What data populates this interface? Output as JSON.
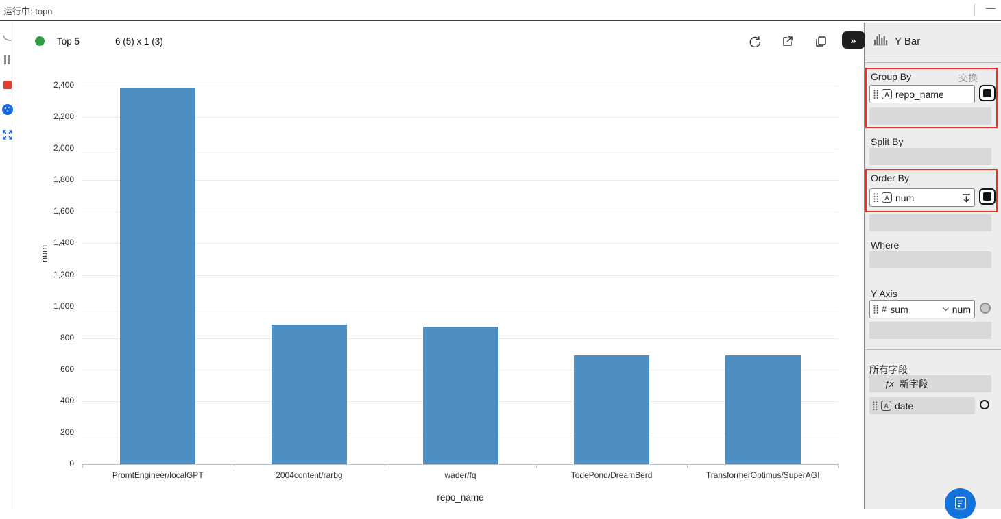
{
  "titlebar": {
    "running_label": "运行中: topn",
    "minimize_glyph": "—"
  },
  "sidebar": {
    "icons": [
      "spinner-arc-icon",
      "pause-icon",
      "stop-icon",
      "blue-ball-icon",
      "expand-icon"
    ]
  },
  "chart_header": {
    "title": "Top 5",
    "dims": "6 (5) x 1 (3)",
    "collapse_glyph": "»"
  },
  "chart_data": {
    "type": "bar",
    "title": "Top 5",
    "categories": [
      "PromtEngineer/localGPT",
      "2004content/rarbg",
      "wader/fq",
      "TodePond/DreamBerd",
      "TransformerOptimus/SuperAGI"
    ],
    "values": [
      2388,
      885,
      874,
      691,
      688
    ],
    "xlabel": "repo_name",
    "ylabel": "num",
    "ylim": [
      0,
      2400
    ],
    "ytick_step": 200,
    "grid": true,
    "legend": false
  },
  "panel": {
    "header": {
      "title": "Y Bar"
    },
    "group_by": {
      "label": "Group By",
      "swap_label": "交换",
      "field": "repo_name",
      "field_type": "A"
    },
    "split_by": {
      "label": "Split By"
    },
    "order_by": {
      "label": "Order By",
      "field": "num",
      "field_type": "A",
      "direction": "desc"
    },
    "where": {
      "label": "Where"
    },
    "y_axis": {
      "label": "Y Axis",
      "aggregation": "sum",
      "field": "num",
      "field_type": "#"
    },
    "all_fields": {
      "label": "所有字段",
      "new_field_label": "新字段",
      "fx_glyph": "ƒx",
      "fields": [
        {
          "name": "date",
          "field_type": "A"
        }
      ]
    }
  },
  "colors": {
    "bar": "#4d8ec3",
    "green_status": "#2f9e44",
    "red_annotation": "#ee2f23",
    "fab_blue": "#1273dd",
    "icon_blue": "#1668dc",
    "stop_red": "#e03c31"
  }
}
